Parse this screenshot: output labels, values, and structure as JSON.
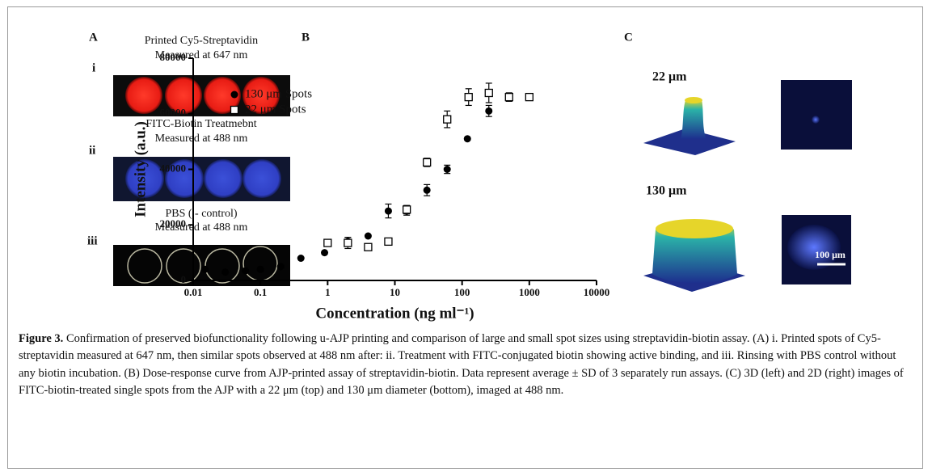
{
  "panel_a": {
    "label": "A",
    "images": [
      {
        "label": "i",
        "title": "Printed Cy5-Streptavidin",
        "subtitle": "Measured at 647 nm"
      },
      {
        "label": "ii",
        "title": "FITC-Biotin Treatmebnt",
        "subtitle": "Measured at 488 nm"
      },
      {
        "label": "iii",
        "title": "PBS ( - control)",
        "subtitle": "Measured at 488 nm"
      }
    ]
  },
  "chart_data": {
    "type": "scatter",
    "panel_label": "B",
    "x_label": "Concentration (ng ml⁻¹)",
    "y_label": "Intensity (a.u.)",
    "xlim": [
      0.01,
      10000
    ],
    "xticks": [
      0.01,
      0.1,
      1,
      10,
      100,
      1000,
      10000
    ],
    "x_log": true,
    "ylim": [
      0,
      80000
    ],
    "yticks": [
      0,
      20000,
      40000,
      60000,
      80000
    ],
    "legend": "upper-left",
    "series": [
      {
        "name": "130 μm Spots",
        "marker": "filled-circle",
        "color": "#000000",
        "x": [
          0.015,
          0.03,
          0.06,
          0.1,
          0.2,
          0.4,
          0.9,
          2,
          4,
          8,
          15,
          30,
          60,
          120,
          250,
          500,
          1000
        ],
        "values": [
          4000,
          3000,
          3500,
          4000,
          5000,
          8000,
          10000,
          14000,
          16000,
          25000,
          25000,
          32500,
          40000,
          51000,
          61000,
          66000,
          66000
        ],
        "errors": [
          0,
          0,
          0,
          0,
          0,
          0,
          0,
          1500,
          0,
          2500,
          1500,
          2000,
          1500,
          0,
          2000,
          1500,
          1000
        ]
      },
      {
        "name": "22 μm Spots",
        "marker": "open-square",
        "color": "#000000",
        "x": [
          1,
          2,
          4,
          8,
          15,
          30,
          60,
          125,
          250,
          500,
          1000
        ],
        "values": [
          13500,
          13500,
          12000,
          14000,
          25500,
          42500,
          58000,
          66000,
          67500,
          66000,
          66000
        ],
        "errors": [
          0,
          2000,
          0,
          0,
          1500,
          1500,
          3000,
          3000,
          3500,
          1500,
          1000
        ]
      }
    ]
  },
  "panel_c": {
    "label": "C",
    "rows": [
      {
        "label": "22 μm"
      },
      {
        "label": "130 μm"
      }
    ],
    "scale_bar": "100 μm"
  },
  "caption": {
    "label": "Figure 3.",
    "text": "Confirmation of preserved biofunctionality following u-AJP printing and comparison of large and small spot sizes using streptavidin-biotin assay. (A) i. Printed spots of Cy5-streptavidin measured at 647 nm, then similar spots observed at 488 nm after: ii. Treatment with FITC-conjugated biotin showing active binding, and iii. Rinsing with PBS control without any biotin incubation. (B) Dose-response curve from AJP-printed assay of streptavidin-biotin. Data represent average ± SD of 3 separately run assays. (C) 3D (left) and 2D (right) images of FITC-biotin-treated single spots from the AJP with a 22 μm (top) and 130 μm diameter (bottom), imaged at 488 nm."
  }
}
